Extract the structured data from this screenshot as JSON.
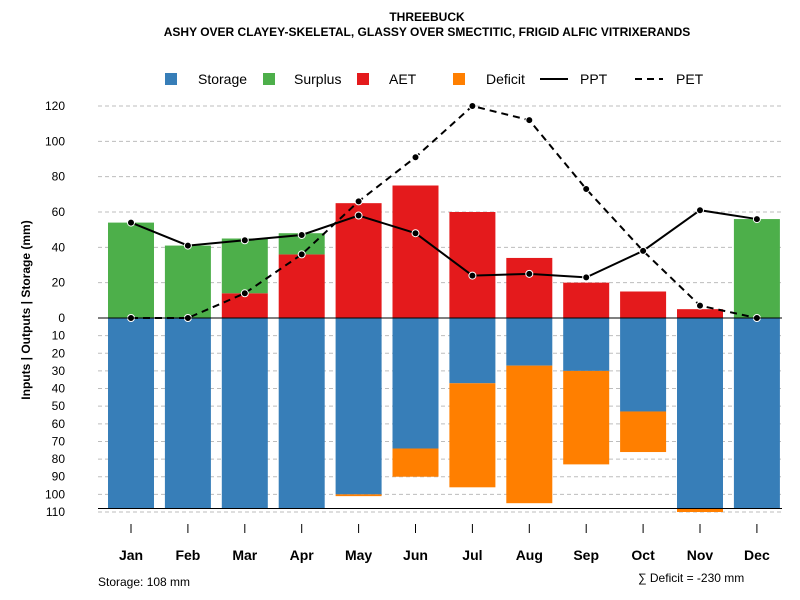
{
  "chart_data": {
    "type": "bar",
    "title": "THREEBUCK",
    "subtitle": "ASHY OVER CLAYEY-SKELETAL, GLASSY OVER SMECTITIC, FRIGID ALFIC VITRIXERANDS",
    "ylabel": "Inputs | Outputs | Storage    (mm)",
    "categories": [
      "Jan",
      "Feb",
      "Mar",
      "Apr",
      "May",
      "Jun",
      "Jul",
      "Aug",
      "Sep",
      "Oct",
      "Nov",
      "Dec"
    ],
    "upper_ylim": [
      0,
      120
    ],
    "upper_ticks": [
      "0",
      "20",
      "40",
      "60",
      "80",
      "100",
      "120"
    ],
    "lower_ylim": [
      0,
      110
    ],
    "lower_ticks": [
      "0",
      "10",
      "20",
      "30",
      "40",
      "50",
      "60",
      "70",
      "80",
      "90",
      "100",
      "110"
    ],
    "series": [
      {
        "name": "Storage",
        "kind": "bar-below",
        "color": "#377EB8",
        "values": [
          108,
          108,
          108,
          108,
          100,
          74,
          37,
          27,
          30,
          53,
          108,
          108
        ]
      },
      {
        "name": "Surplus",
        "kind": "bar-above",
        "color": "#4DAF4A",
        "values": [
          54,
          41,
          31,
          12,
          0,
          0,
          0,
          0,
          0,
          0,
          0,
          56
        ]
      },
      {
        "name": "AET",
        "kind": "bar-above",
        "color": "#E41A1C",
        "values": [
          0,
          0,
          14,
          36,
          65,
          75,
          60,
          34,
          20,
          15,
          5,
          0
        ]
      },
      {
        "name": "Deficit",
        "kind": "bar-below",
        "color": "#FF7F00",
        "values": [
          0,
          0,
          0,
          0,
          1,
          16,
          59,
          78,
          53,
          23,
          2,
          0
        ]
      },
      {
        "name": "PPT",
        "kind": "line",
        "color": "#000000",
        "dash": "solid",
        "values": [
          54,
          41,
          44,
          47,
          58,
          48,
          24,
          25,
          23,
          38,
          61,
          56
        ]
      },
      {
        "name": "PET",
        "kind": "line",
        "color": "#000000",
        "dash": "dashed",
        "values": [
          0,
          0,
          14,
          36,
          66,
          91,
          120,
          112,
          73,
          38,
          7,
          0
        ]
      }
    ],
    "legend_position": "top",
    "grid": true,
    "storage_label": "Storage: 108 mm",
    "deficit_label": "∑ Deficit = -230 mm"
  }
}
